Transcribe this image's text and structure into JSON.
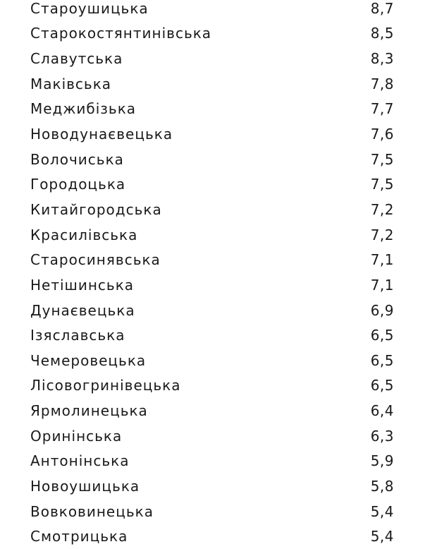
{
  "rows": [
    {
      "name": "Староушицька",
      "value": "8,7"
    },
    {
      "name": "Старокостянтинівська",
      "value": "8,5"
    },
    {
      "name": "Славутська",
      "value": "8,3"
    },
    {
      "name": "Маківська",
      "value": "7,8"
    },
    {
      "name": "Меджибізька",
      "value": "7,7"
    },
    {
      "name": "Новодунаєвецька",
      "value": "7,6"
    },
    {
      "name": "Волочиська",
      "value": "7,5"
    },
    {
      "name": "Городоцька",
      "value": "7,5"
    },
    {
      "name": "Китайгородська",
      "value": "7,2"
    },
    {
      "name": "Красилівська",
      "value": "7,2"
    },
    {
      "name": "Старосинявська",
      "value": "7,1"
    },
    {
      "name": "Нетішинська",
      "value": "7,1"
    },
    {
      "name": "Дунаєвецька",
      "value": "6,9"
    },
    {
      "name": "Ізяславська",
      "value": "6,5"
    },
    {
      "name": "Чемеровецька",
      "value": "6,5"
    },
    {
      "name": "Лісовогринівецька",
      "value": "6,5"
    },
    {
      "name": "Ярмолинецька",
      "value": "6,4"
    },
    {
      "name": "Оринінська",
      "value": "6,3"
    },
    {
      "name": "Антонінська",
      "value": "5,9"
    },
    {
      "name": "Новоушицька",
      "value": "5,8"
    },
    {
      "name": "Вовковинецька",
      "value": "5,4"
    },
    {
      "name": "Смотрицька",
      "value": "5,4"
    }
  ]
}
